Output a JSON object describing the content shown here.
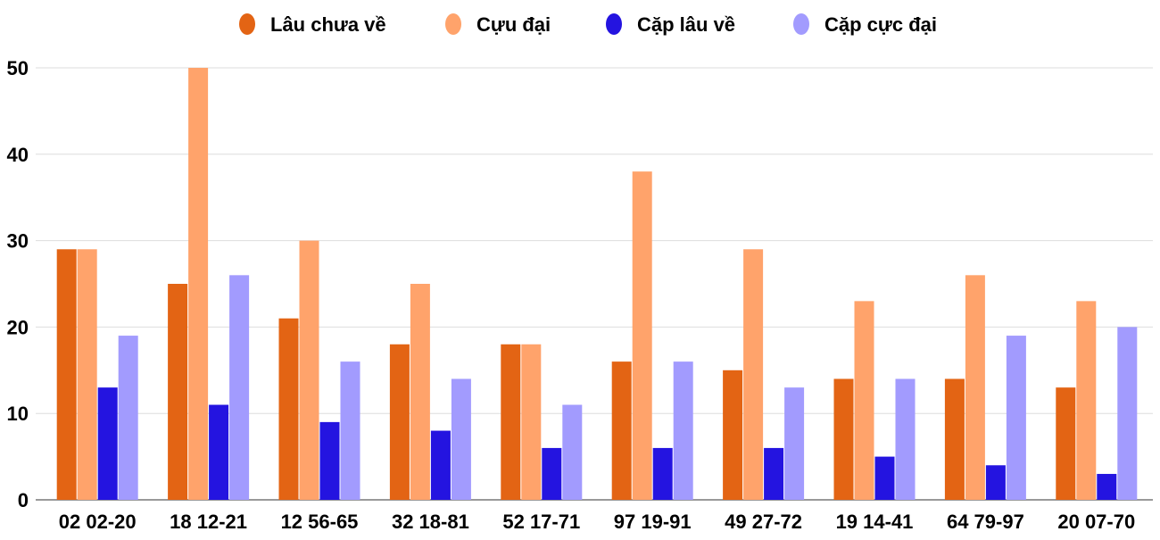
{
  "chart_data": {
    "type": "bar",
    "title": "",
    "xlabel": "",
    "ylabel": "",
    "ylim": [
      0,
      50
    ],
    "yticks": [
      0,
      10,
      20,
      30,
      40,
      50
    ],
    "grid": true,
    "legend_position": "top",
    "categories": [
      "02 02-20",
      "18 12-21",
      "12 56-65",
      "32 18-81",
      "52 17-71",
      "97 19-91",
      "49 27-72",
      "19 14-41",
      "64 79-97",
      "20 07-70"
    ],
    "series": [
      {
        "name": "Lâu chưa về",
        "color": "#E36414",
        "values": [
          29,
          25,
          21,
          18,
          18,
          16,
          15,
          14,
          14,
          13
        ]
      },
      {
        "name": "Cựu đại",
        "color": "#FFA36B",
        "values": [
          29,
          50,
          30,
          25,
          18,
          38,
          29,
          23,
          26,
          23
        ]
      },
      {
        "name": "Cặp lâu về",
        "color": "#2414E0",
        "values": [
          13,
          11,
          9,
          8,
          6,
          6,
          6,
          5,
          4,
          3
        ]
      },
      {
        "name": "Cặp cực đại",
        "color": "#A29BFE",
        "values": [
          19,
          26,
          16,
          14,
          11,
          16,
          13,
          14,
          19,
          20
        ]
      }
    ]
  }
}
